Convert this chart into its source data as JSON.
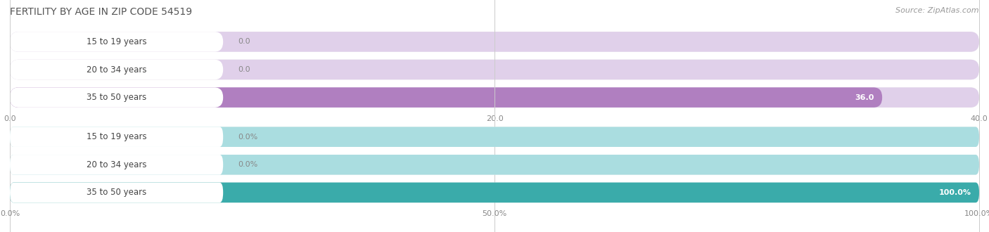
{
  "title": "Female Fertility by Age in Zip Code 54519",
  "title_display": "FERTILITY BY AGE IN ZIP CODE 54519",
  "source": "Source: ZipAtlas.com",
  "chart1": {
    "categories": [
      "15 to 19 years",
      "20 to 34 years",
      "35 to 50 years"
    ],
    "values": [
      0.0,
      0.0,
      36.0
    ],
    "xlim": [
      0,
      40
    ],
    "xticks": [
      0.0,
      20.0,
      40.0
    ],
    "xtick_labels": [
      "0.0",
      "20.0",
      "40.0"
    ],
    "bar_color": "#b07fc0",
    "bar_bg_color": "#e0d0ea",
    "label_bg_color": "#f0eaf5"
  },
  "chart2": {
    "categories": [
      "15 to 19 years",
      "20 to 34 years",
      "35 to 50 years"
    ],
    "values": [
      0.0,
      0.0,
      100.0
    ],
    "xlim": [
      0,
      100
    ],
    "xticks": [
      0.0,
      50.0,
      100.0
    ],
    "xtick_labels": [
      "0.0%",
      "50.0%",
      "100.0%"
    ],
    "bar_color": "#3aabaa",
    "bar_bg_color": "#aadde0",
    "label_bg_color": "#e0f4f5"
  },
  "bg_color": "#ffffff",
  "row_bg_color": "#f5f5f5",
  "label_font_size": 8.5,
  "title_font_size": 10,
  "source_font_size": 8,
  "tick_font_size": 8,
  "value_font_size": 8
}
